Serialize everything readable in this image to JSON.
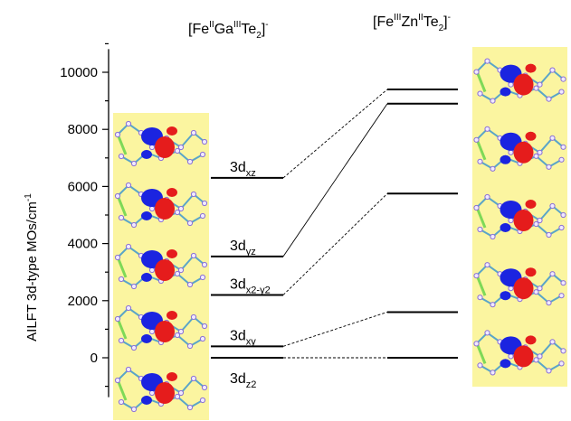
{
  "chart_data": {
    "type": "energy-level-diagram",
    "ylabel": "AILFT 3d-type MOs/cm",
    "ylabel_sup": "-1",
    "yticks": [
      0,
      2000,
      4000,
      6000,
      8000,
      10000
    ],
    "ylim": [
      -1000,
      11000
    ],
    "left_title": {
      "pre": "[Fe",
      "sup1": "II",
      "mid": "Ga",
      "sup2": "III",
      "post": "Te",
      "sub": "2",
      "end": "]",
      "sup3": "-"
    },
    "right_title": {
      "pre": "[Fe",
      "sup1": "III",
      "mid": "Zn",
      "sup2": "II",
      "post": "Te",
      "sub": "2",
      "end": "]",
      "sup3": "-"
    },
    "left_levels": [
      {
        "label_main": "3d",
        "label_sub": "z2",
        "value": 0
      },
      {
        "label_main": "3d",
        "label_sub": "xy",
        "value": 400
      },
      {
        "label_main": "3d",
        "label_sub": "x2-y2",
        "value": 2200
      },
      {
        "label_main": "3d",
        "label_sub": "yz",
        "value": 3550
      },
      {
        "label_main": "3d",
        "label_sub": "xz",
        "value": 6300
      }
    ],
    "right_levels": [
      {
        "value": 0
      },
      {
        "value": 1600
      },
      {
        "value": 5750
      },
      {
        "value": 8900
      },
      {
        "value": 9400
      }
    ],
    "connections": [
      {
        "from": 0,
        "to": 0,
        "style": "dashed"
      },
      {
        "from": 1,
        "to": 1,
        "style": "dashed"
      },
      {
        "from": 2,
        "to": 2,
        "style": "dashed"
      },
      {
        "from": 3,
        "to": 3,
        "style": "solid"
      },
      {
        "from": 4,
        "to": 4,
        "style": "dashed"
      }
    ],
    "panel_color": "#fbf5a0"
  }
}
